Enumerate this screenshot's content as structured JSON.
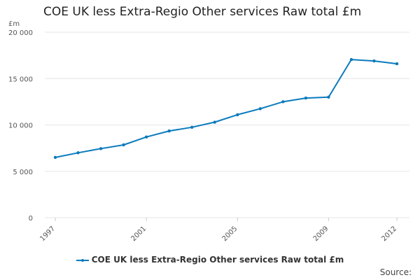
{
  "title": "COE UK less Extra-Regio Other services Raw total £m",
  "unit_label": "£m",
  "source_label": "Source:",
  "colors": {
    "series": "#0b7bbd",
    "grid": "#e6e6e6",
    "axis_text": "#555555"
  },
  "chart_data": {
    "type": "line",
    "title": "COE UK less Extra-Regio Other services Raw total £m",
    "ylabel": "£m",
    "xlabel": "",
    "ylim": [
      0,
      20000
    ],
    "y_ticks": [
      0,
      5000,
      10000,
      15000,
      20000
    ],
    "y_tick_labels": [
      "0",
      "5 000",
      "10 000",
      "15 000",
      "20 000"
    ],
    "x_tick_labels": [
      "1997",
      "2001",
      "2005",
      "2009",
      "2012"
    ],
    "grid": true,
    "legend_position": "bottom",
    "series": [
      {
        "name": "COE UK less Extra-Regio Other services Raw total £m",
        "x": [
          1997,
          1998,
          1999,
          2000,
          2001,
          2002,
          2003,
          2004,
          2005,
          2006,
          2007,
          2008,
          2009,
          2010,
          2011,
          2012
        ],
        "values": [
          6500,
          7000,
          7450,
          7850,
          8700,
          9350,
          9750,
          10300,
          11100,
          11750,
          12500,
          12900,
          13000,
          17050,
          16900,
          16600
        ]
      }
    ]
  }
}
